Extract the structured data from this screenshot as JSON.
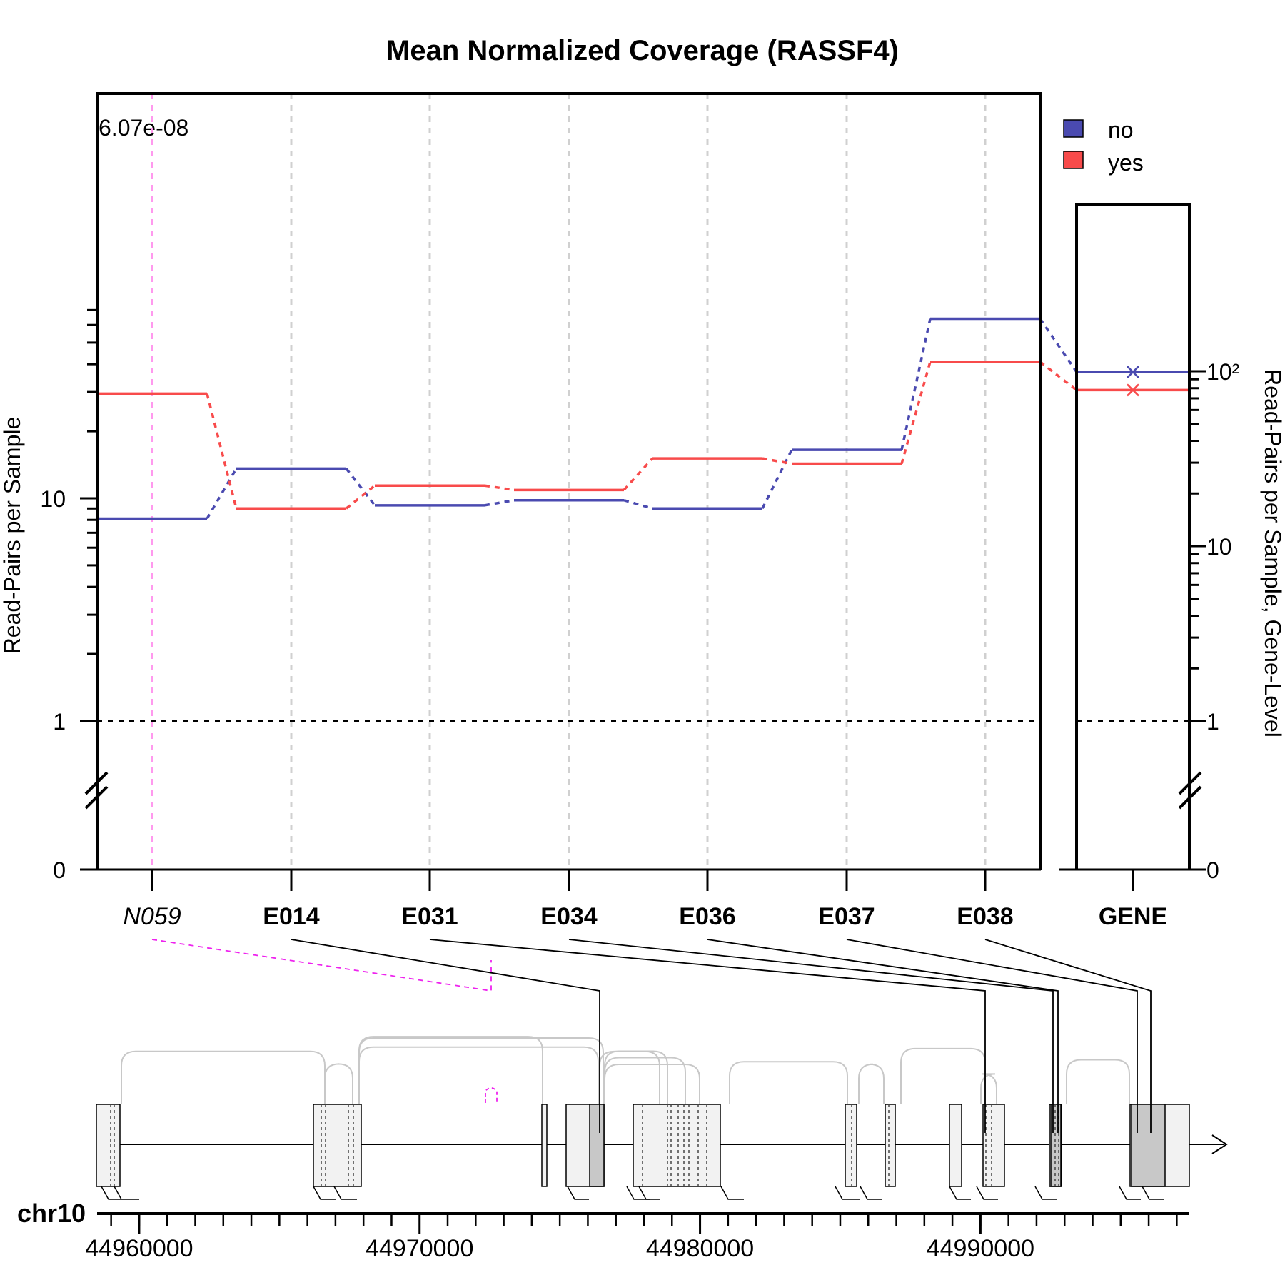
{
  "chart_data": {
    "type": "line",
    "title": "Mean Normalized Coverage (RASSF4)",
    "ylabel": "Read-Pairs per Sample",
    "ylabel_right": "Read-Pairs per Sample, Gene-Level",
    "y_scale": "log",
    "y_ticks": [
      "0",
      "1",
      "10"
    ],
    "gene_y_ticks": [
      "0",
      "1",
      "10",
      "10²"
    ],
    "categories": [
      {
        "label": "N059",
        "novel": true
      },
      {
        "label": "E014",
        "novel": false
      },
      {
        "label": "E031",
        "novel": false
      },
      {
        "label": "E034",
        "novel": false
      },
      {
        "label": "E036",
        "novel": false
      },
      {
        "label": "E037",
        "novel": false
      },
      {
        "label": "E038",
        "novel": false
      }
    ],
    "series": [
      {
        "name": "no",
        "color": "#4a4ab0",
        "values": [
          8.1,
          13.6,
          9.3,
          9.8,
          9.0,
          16.5,
          64.0
        ],
        "gene": 99
      },
      {
        "name": "yes",
        "color": "#f84b4b",
        "values": [
          29.5,
          9.0,
          11.4,
          10.9,
          15.1,
          14.3,
          41.0
        ],
        "gene": 78
      }
    ],
    "gene_category": "GENE",
    "reference_line": 1,
    "significance": {
      "category": "N059",
      "pvalue_label": "6.07e-08",
      "color": "#ff99ee"
    },
    "legend": {
      "position": "top-right"
    },
    "genome": {
      "chromosome": "chr10",
      "ticks": [
        "44960000",
        "44970000",
        "44980000",
        "44990000"
      ],
      "start": 44958500,
      "end": 44997500
    }
  }
}
